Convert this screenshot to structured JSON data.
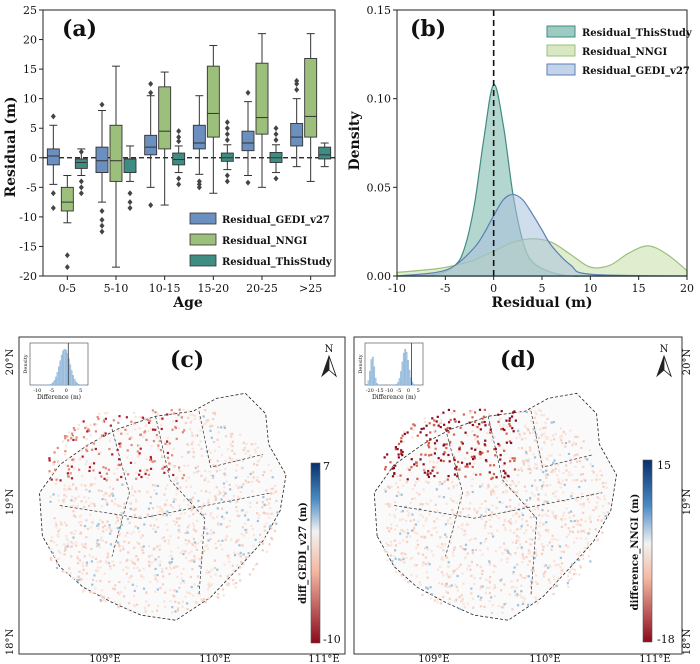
{
  "panels": {
    "a": {
      "label": "(a)"
    },
    "b": {
      "label": "(b)"
    },
    "c": {
      "label": "(c)",
      "north": "N",
      "colorbar_label": "diff_GEDI_v27 (m)",
      "cb_max": "7",
      "cb_min": "-10",
      "inset_xlabel": "Difference (m)",
      "inset_ylabel": "Density",
      "inset_ticks": [
        "-10",
        "-5",
        "0",
        "5"
      ]
    },
    "d": {
      "label": "(d)",
      "north": "N",
      "colorbar_label": "difference_NNGI (m)",
      "cb_max": "15",
      "cb_min": "-18",
      "inset_xlabel": "Difference (m)",
      "inset_ylabel": "Density",
      "inset_ticks": [
        "-20",
        "-15",
        "-10",
        "-5",
        "0",
        "5"
      ]
    }
  },
  "map_labels": {
    "lat_left_c": [
      "20°N",
      "19°N",
      "18°N"
    ],
    "lat_right_d": [
      "20°N",
      "19°N",
      "18°N"
    ],
    "lon_c": [
      "109°E",
      "110°E",
      "111°E"
    ],
    "lon_d": [
      "109°E",
      "110°E",
      "111°E"
    ]
  },
  "colors": {
    "gedi": "#6b8fbf",
    "nngi": "#9cbf7c",
    "thisstudy": "#3f8c82",
    "kde_thisstudy": "#74b5a8",
    "kde_nngi": "#c6dea8",
    "kde_gedi": "#a9c1df",
    "diverging_neg": "#a50f15",
    "diverging_pos": "#08519c"
  },
  "chart_data": [
    {
      "type": "box",
      "panel": "a",
      "xlabel": "Age",
      "ylabel": "Residual (m)",
      "ylim": [
        -20,
        25
      ],
      "yticks": [
        "-20",
        "-15",
        "-10",
        "-5",
        "0",
        "5",
        "10",
        "15",
        "20",
        "25"
      ],
      "categories": [
        "0-5",
        "5-10",
        "10-15",
        "15-20",
        "20-25",
        ">25"
      ],
      "legend_position": "lower-right",
      "series": [
        {
          "name": "Residual_GEDI_v27",
          "boxes": [
            {
              "q1": -1.2,
              "median": 0.3,
              "q3": 1.5,
              "whislo": -4.5,
              "whishi": 5.5,
              "fliers": [
                7,
                -6,
                -8.5
              ]
            },
            {
              "q1": -2.5,
              "median": -0.5,
              "q3": 1.8,
              "whislo": -7.5,
              "whishi": 8,
              "fliers": [
                9,
                -9,
                -10.5,
                -11.5,
                -12.5
              ]
            },
            {
              "q1": 0.5,
              "median": 1.8,
              "q3": 3.8,
              "whislo": -5,
              "whishi": 10.5,
              "fliers": [
                12.5,
                -8,
                11
              ]
            },
            {
              "q1": 1.5,
              "median": 2.5,
              "q3": 5.5,
              "whislo": -2.8,
              "whishi": 10.5,
              "fliers": [
                -4,
                -5,
                -4.5
              ]
            },
            {
              "q1": 1.2,
              "median": 2.5,
              "q3": 4.5,
              "whislo": -3,
              "whishi": 9.5,
              "fliers": [
                11,
                -4.2
              ]
            },
            {
              "q1": 2,
              "median": 3.5,
              "q3": 5.8,
              "whislo": -1.5,
              "whishi": 10,
              "fliers": [
                11.5,
                12.5,
                13
              ]
            }
          ]
        },
        {
          "name": "Residual_NNGI",
          "boxes": [
            {
              "q1": -9,
              "median": -7.5,
              "q3": -5,
              "whislo": -11,
              "whishi": -3,
              "fliers": [
                -16.5,
                -18.5
              ]
            },
            {
              "q1": -4,
              "median": -0.5,
              "q3": 5.5,
              "whislo": -18.5,
              "whishi": 15.5,
              "fliers": []
            },
            {
              "q1": 1.5,
              "median": 4.5,
              "q3": 12,
              "whislo": -8,
              "whishi": 14.5,
              "fliers": []
            },
            {
              "q1": 3.5,
              "median": 7.5,
              "q3": 15.5,
              "whislo": -6,
              "whishi": 19,
              "fliers": []
            },
            {
              "q1": 4,
              "median": 6.8,
              "q3": 16,
              "whislo": -5,
              "whishi": 21,
              "fliers": []
            },
            {
              "q1": 3.5,
              "median": 7,
              "q3": 16.8,
              "whislo": -4,
              "whishi": 21,
              "fliers": []
            }
          ]
        },
        {
          "name": "Residual_ThisStudy",
          "boxes": [
            {
              "q1": -1.8,
              "median": -0.8,
              "q3": -0.2,
              "whislo": -3,
              "whishi": 1.5,
              "fliers": [
                -4,
                -5,
                -6,
                1
              ]
            },
            {
              "q1": -2.5,
              "median": -0.2,
              "q3": -0.2,
              "whislo": -4,
              "whishi": 2,
              "fliers": [
                -6,
                -7.5,
                -8.5
              ]
            },
            {
              "q1": -1.2,
              "median": -0.3,
              "q3": 0.8,
              "whislo": -2.5,
              "whishi": 2,
              "fliers": [
                2.8,
                3.5,
                4.5,
                -3.5,
                -4.5
              ]
            },
            {
              "q1": -0.6,
              "median": 0,
              "q3": 0.8,
              "whislo": -2,
              "whishi": 2.2,
              "fliers": [
                3,
                4,
                5,
                6,
                -3,
                -4
              ]
            },
            {
              "q1": -0.8,
              "median": 0,
              "q3": 0.9,
              "whislo": -2.5,
              "whishi": 2.2,
              "fliers": [
                3,
                4,
                5,
                -3.5
              ]
            },
            {
              "q1": -0.2,
              "median": 0.5,
              "q3": 1.8,
              "whislo": -1.5,
              "whishi": 2.5,
              "fliers": []
            }
          ]
        }
      ]
    },
    {
      "type": "area",
      "panel": "b",
      "xlabel": "Residual (m)",
      "ylabel": "Density",
      "xlim": [
        -10,
        20
      ],
      "ylim": [
        0,
        0.15
      ],
      "xticks": [
        "-10",
        "-5",
        "0",
        "5",
        "10",
        "15",
        "20"
      ],
      "yticks": [
        "0.00",
        "0.05",
        "0.10",
        "0.15"
      ],
      "reference_line_x": 0,
      "legend_position": "top-right",
      "series": [
        {
          "name": "Residual_ThisStudy",
          "x": [
            -10,
            -6,
            -4,
            -3,
            -2,
            -1,
            0,
            1,
            2,
            3,
            4,
            6,
            8,
            10,
            20
          ],
          "values": [
            0,
            0.001,
            0.006,
            0.016,
            0.04,
            0.078,
            0.108,
            0.085,
            0.046,
            0.02,
            0.008,
            0.002,
            0,
            0,
            0
          ]
        },
        {
          "name": "Residual_NNGI",
          "x": [
            -10,
            -6,
            -4,
            -2,
            0,
            2,
            4,
            6,
            8,
            10,
            12,
            14,
            16,
            18,
            20
          ],
          "values": [
            0.002,
            0.004,
            0.006,
            0.009,
            0.014,
            0.019,
            0.021,
            0.019,
            0.012,
            0.005,
            0.006,
            0.013,
            0.017,
            0.012,
            0.003
          ]
        },
        {
          "name": "Residual_GEDI_v27",
          "x": [
            -10,
            -6,
            -4,
            -2,
            -1,
            0,
            1,
            2,
            3,
            4,
            5,
            6,
            8,
            10,
            20
          ],
          "values": [
            0,
            0.002,
            0.006,
            0.016,
            0.024,
            0.034,
            0.043,
            0.046,
            0.043,
            0.035,
            0.026,
            0.017,
            0.006,
            0.001,
            0
          ]
        }
      ]
    }
  ]
}
